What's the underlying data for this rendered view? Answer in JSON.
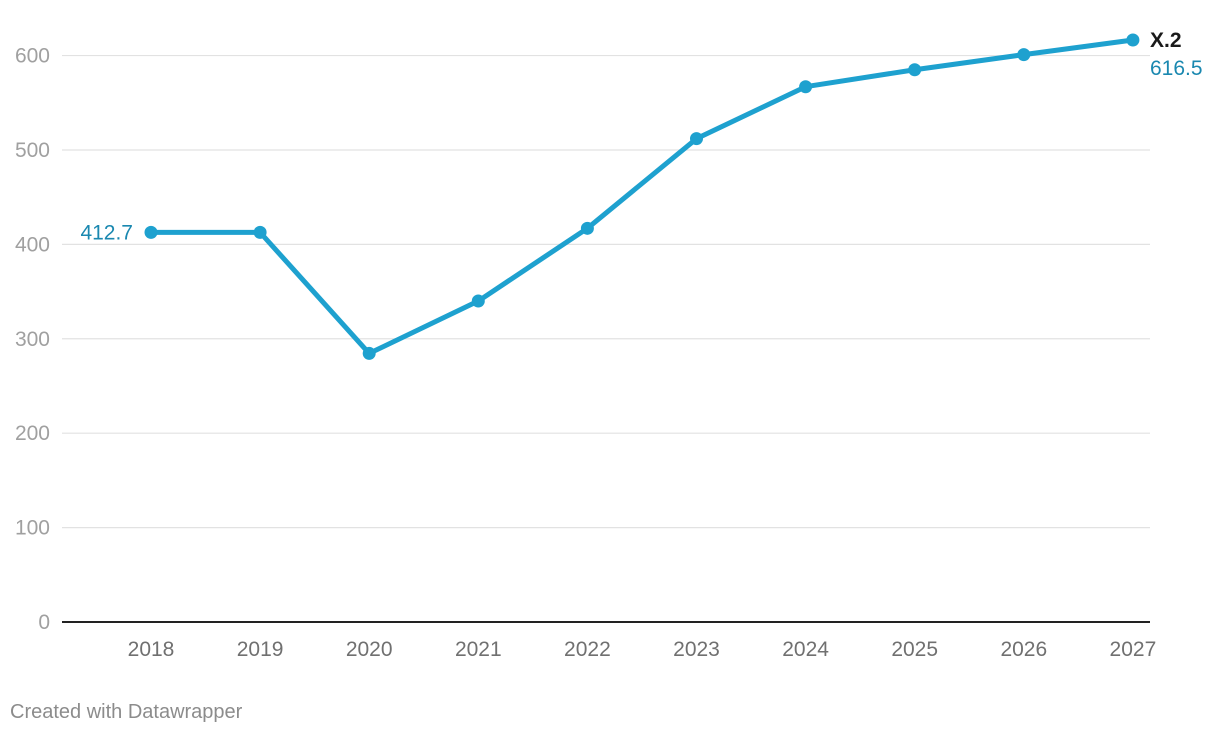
{
  "chart_data": {
    "type": "line",
    "categories": [
      "2018",
      "2019",
      "2020",
      "2021",
      "2022",
      "2023",
      "2024",
      "2025",
      "2026",
      "2027"
    ],
    "series": [
      {
        "name": "X.2",
        "values": [
          412.7,
          412.7,
          284.5,
          340.0,
          417.0,
          512.0,
          567.0,
          585.0,
          601.0,
          616.5
        ],
        "color": "#1ea1cf"
      }
    ],
    "data_labels": {
      "first": "412.7",
      "last": "616.5"
    },
    "yticks": [
      "0",
      "100",
      "200",
      "300",
      "400",
      "500",
      "600"
    ],
    "ylim": [
      0,
      640
    ],
    "grid": true,
    "colors": {
      "line": "#1ea1cf",
      "label": "#1a88b0",
      "axis_text": "#a0a0a0",
      "x_tick_text": "#707070",
      "gridline": "#e2e2e2",
      "baseline": "#222222",
      "series_label": "#1a1a1a"
    }
  },
  "footer": {
    "credit": "Created with Datawrapper"
  }
}
